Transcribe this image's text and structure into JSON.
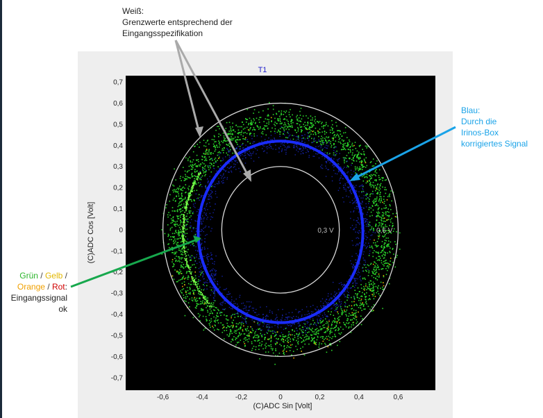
{
  "annotations": {
    "weiss": {
      "line1": "Weiß:",
      "line2": "Grenzwerte entsprechend der",
      "line3": "Eingangsspezifikation"
    },
    "blau": {
      "line1": "Blau:",
      "line2": "Durch die",
      "line3": "Irinos-Box",
      "line4": "korrigiertes Signal"
    },
    "legend_left": {
      "gruen": "Grün",
      "gelb": "Gelb",
      "orange": "Orange",
      "rot": "Rot",
      "sep": " / ",
      "colon": ":",
      "line3": "Eingangssignal",
      "line4": "ok"
    }
  },
  "colors": {
    "white_ring": "#d8d8d8",
    "blue": "#1a2cff",
    "green": "#2bd62b",
    "yellow": "#e2c000",
    "orange": "#f0a000",
    "red": "#d00000",
    "arrow_gray": "#b0b0b0",
    "arrow_blue": "#1aa3e8",
    "arrow_green": "#17a84d"
  },
  "chart_data": {
    "type": "scatter",
    "title": "T1",
    "xlabel": "(C)ADC Sin [Volt]",
    "ylabel": "(C)ADC Cos [Volt]",
    "xlim": [
      -0.79,
      0.79
    ],
    "ylim": [
      -0.76,
      0.73
    ],
    "x_ticks": [
      {
        "v": -0.6,
        "label": "-0,6"
      },
      {
        "v": -0.4,
        "label": "-0,4"
      },
      {
        "v": -0.2,
        "label": "-0,2"
      },
      {
        "v": 0,
        "label": "0"
      },
      {
        "v": 0.2,
        "label": "0,2"
      },
      {
        "v": 0.4,
        "label": "0,4"
      },
      {
        "v": 0.6,
        "label": "0,6"
      }
    ],
    "y_ticks": [
      {
        "v": 0.7,
        "label": "0,7"
      },
      {
        "v": 0.6,
        "label": "0,6"
      },
      {
        "v": 0.5,
        "label": "0,5"
      },
      {
        "v": 0.4,
        "label": "0,4"
      },
      {
        "v": 0.3,
        "label": "0,3"
      },
      {
        "v": 0.2,
        "label": "0,2"
      },
      {
        "v": 0.1,
        "label": "0,1"
      },
      {
        "v": 0,
        "label": "0"
      },
      {
        "v": -0.1,
        "label": "-0,1"
      },
      {
        "v": -0.2,
        "label": "-0,2"
      },
      {
        "v": -0.3,
        "label": "-0,3"
      },
      {
        "v": -0.4,
        "label": "-0,4"
      },
      {
        "v": -0.5,
        "label": "-0,5"
      },
      {
        "v": -0.6,
        "label": "-0,6"
      },
      {
        "v": -0.7,
        "label": "-0,7"
      }
    ],
    "limit_circles": [
      {
        "radius": 0.3,
        "label": "0,3 V"
      },
      {
        "radius": 0.6,
        "label": "0,6 V"
      }
    ],
    "series": [
      {
        "name": "Blau",
        "color": "#1a2cff",
        "center": [
          0,
          -0.01
        ],
        "rx": 0.42,
        "ry": 0.43,
        "spread": 0.035
      },
      {
        "name": "Grün",
        "color": "#2bd62b",
        "center": [
          0,
          -0.01
        ],
        "rx": 0.53,
        "ry": 0.52,
        "spread": 0.07
      }
    ]
  }
}
